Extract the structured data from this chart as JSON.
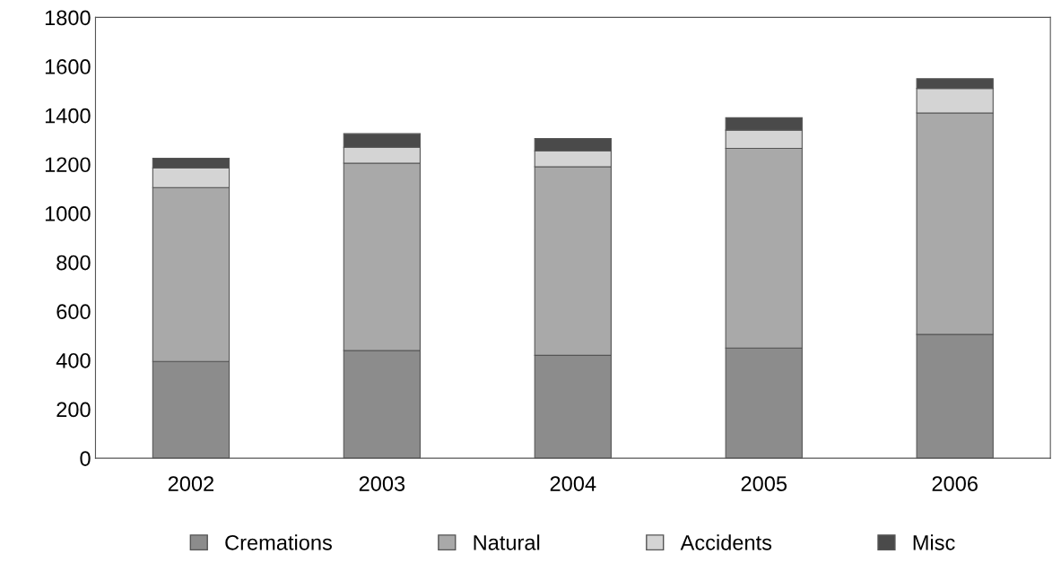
{
  "chart_data": {
    "type": "bar",
    "stacked": true,
    "categories": [
      "2002",
      "2003",
      "2004",
      "2005",
      "2006"
    ],
    "series": [
      {
        "name": "Cremations",
        "color": "#8c8c8c",
        "values": [
          395,
          440,
          420,
          450,
          505
        ]
      },
      {
        "name": "Natural",
        "color": "#a9a9a9",
        "values": [
          710,
          765,
          770,
          815,
          905
        ]
      },
      {
        "name": "Accidents",
        "color": "#d4d4d4",
        "values": [
          80,
          65,
          65,
          75,
          100
        ]
      },
      {
        "name": "Misc",
        "color": "#4a4a4a",
        "values": [
          40,
          55,
          50,
          50,
          40
        ]
      }
    ],
    "ylim": [
      0,
      1800
    ],
    "yticks": [
      0,
      200,
      400,
      600,
      800,
      1000,
      1200,
      1400,
      1600,
      1800
    ],
    "grid": false,
    "legend": "bottom"
  }
}
